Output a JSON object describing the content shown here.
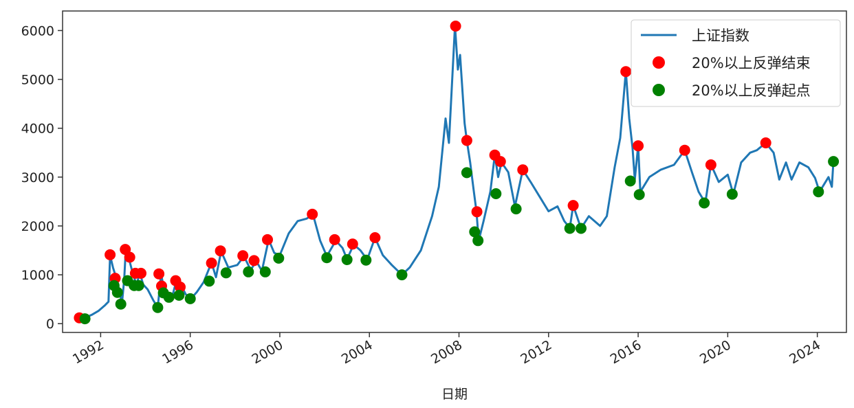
{
  "chart_data": {
    "type": "line",
    "title": "",
    "xlabel": "日期",
    "ylabel": "",
    "xlim": [
      1990.3,
      2025.3
    ],
    "ylim": [
      -180,
      6400
    ],
    "x_ticks": [
      1992,
      1996,
      2000,
      2004,
      2008,
      2012,
      2016,
      2020,
      2024
    ],
    "y_ticks": [
      0,
      1000,
      2000,
      3000,
      4000,
      5000,
      6000
    ],
    "grid": false,
    "legend_position": "top-right",
    "colors": {
      "line": "#1f77b4",
      "end": "#ff0000",
      "start": "#008000"
    },
    "series": [
      {
        "name": "上证指数",
        "kind": "line",
        "points": [
          [
            1990.95,
            100
          ],
          [
            1991.3,
            120
          ],
          [
            1991.6,
            180
          ],
          [
            1991.9,
            260
          ],
          [
            1992.2,
            380
          ],
          [
            1992.35,
            450
          ],
          [
            1992.42,
            1400
          ],
          [
            1992.55,
            1150
          ],
          [
            1992.7,
            930
          ],
          [
            1992.85,
            650
          ],
          [
            1992.95,
            400
          ],
          [
            1993.05,
            900
          ],
          [
            1993.12,
            1510
          ],
          [
            1993.28,
            1300
          ],
          [
            1993.45,
            1000
          ],
          [
            1993.6,
            800
          ],
          [
            1993.75,
            1030
          ],
          [
            1993.9,
            800
          ],
          [
            1994.1,
            700
          ],
          [
            1994.35,
            480
          ],
          [
            1994.55,
            330
          ],
          [
            1994.7,
            1020
          ],
          [
            1994.82,
            720
          ],
          [
            1995.0,
            600
          ],
          [
            1995.2,
            560
          ],
          [
            1995.38,
            880
          ],
          [
            1995.5,
            660
          ],
          [
            1995.62,
            760
          ],
          [
            1995.8,
            600
          ],
          [
            1996.05,
            520
          ],
          [
            1996.3,
            650
          ],
          [
            1996.6,
            850
          ],
          [
            1996.95,
            1250
          ],
          [
            1997.15,
            950
          ],
          [
            1997.38,
            1480
          ],
          [
            1997.7,
            1150
          ],
          [
            1998.1,
            1200
          ],
          [
            1998.4,
            1380
          ],
          [
            1998.7,
            1100
          ],
          [
            1998.95,
            1280
          ],
          [
            1999.2,
            1080
          ],
          [
            1999.5,
            1720
          ],
          [
            1999.75,
            1450
          ],
          [
            2000.0,
            1400
          ],
          [
            2000.4,
            1850
          ],
          [
            2000.8,
            2100
          ],
          [
            2001.2,
            2150
          ],
          [
            2001.48,
            2240
          ],
          [
            2001.8,
            1700
          ],
          [
            2002.1,
            1380
          ],
          [
            2002.5,
            1700
          ],
          [
            2002.8,
            1550
          ],
          [
            2003.0,
            1320
          ],
          [
            2003.3,
            1620
          ],
          [
            2003.6,
            1500
          ],
          [
            2003.9,
            1310
          ],
          [
            2004.25,
            1760
          ],
          [
            2004.6,
            1400
          ],
          [
            2005.0,
            1200
          ],
          [
            2005.45,
            1000
          ],
          [
            2005.8,
            1150
          ],
          [
            2006.3,
            1500
          ],
          [
            2006.8,
            2200
          ],
          [
            2007.1,
            2800
          ],
          [
            2007.4,
            4200
          ],
          [
            2007.55,
            3700
          ],
          [
            2007.82,
            6100
          ],
          [
            2007.95,
            5200
          ],
          [
            2008.05,
            5500
          ],
          [
            2008.25,
            4100
          ],
          [
            2008.35,
            3750
          ],
          [
            2008.5,
            3300
          ],
          [
            2008.65,
            2750
          ],
          [
            2008.78,
            2300
          ],
          [
            2008.88,
            1700
          ],
          [
            2009.1,
            2100
          ],
          [
            2009.4,
            2700
          ],
          [
            2009.6,
            3450
          ],
          [
            2009.75,
            3000
          ],
          [
            2009.9,
            3300
          ],
          [
            2010.2,
            3100
          ],
          [
            2010.5,
            2400
          ],
          [
            2010.85,
            3150
          ],
          [
            2011.2,
            2900
          ],
          [
            2011.6,
            2600
          ],
          [
            2012.0,
            2300
          ],
          [
            2012.4,
            2400
          ],
          [
            2012.7,
            2100
          ],
          [
            2012.95,
            1960
          ],
          [
            2013.1,
            2420
          ],
          [
            2013.45,
            1950
          ],
          [
            2013.8,
            2200
          ],
          [
            2014.3,
            2000
          ],
          [
            2014.6,
            2200
          ],
          [
            2014.95,
            3200
          ],
          [
            2015.2,
            3800
          ],
          [
            2015.45,
            5170
          ],
          [
            2015.6,
            4200
          ],
          [
            2015.75,
            3600
          ],
          [
            2015.85,
            2950
          ],
          [
            2016.0,
            3640
          ],
          [
            2016.1,
            2700
          ],
          [
            2016.5,
            3000
          ],
          [
            2017.0,
            3150
          ],
          [
            2017.6,
            3250
          ],
          [
            2018.08,
            3550
          ],
          [
            2018.4,
            3100
          ],
          [
            2018.7,
            2700
          ],
          [
            2019.0,
            2470
          ],
          [
            2019.25,
            3260
          ],
          [
            2019.6,
            2900
          ],
          [
            2020.0,
            3050
          ],
          [
            2020.25,
            2650
          ],
          [
            2020.6,
            3300
          ],
          [
            2021.0,
            3500
          ],
          [
            2021.3,
            3550
          ],
          [
            2021.7,
            3700
          ],
          [
            2022.05,
            3500
          ],
          [
            2022.3,
            2950
          ],
          [
            2022.6,
            3300
          ],
          [
            2022.85,
            2950
          ],
          [
            2023.2,
            3300
          ],
          [
            2023.6,
            3200
          ],
          [
            2023.9,
            2980
          ],
          [
            2024.1,
            2700
          ],
          [
            2024.5,
            3000
          ],
          [
            2024.65,
            2800
          ],
          [
            2024.72,
            3330
          ]
        ]
      },
      {
        "name": "20%以上反弹结束",
        "kind": "scatter",
        "points": [
          [
            1991.05,
            120
          ],
          [
            1992.42,
            1410
          ],
          [
            1992.65,
            930
          ],
          [
            1993.1,
            1520
          ],
          [
            1993.3,
            1360
          ],
          [
            1993.55,
            1030
          ],
          [
            1993.8,
            1030
          ],
          [
            1994.6,
            1020
          ],
          [
            1994.72,
            770
          ],
          [
            1995.35,
            880
          ],
          [
            1995.55,
            750
          ],
          [
            1996.95,
            1240
          ],
          [
            1997.35,
            1490
          ],
          [
            1998.35,
            1390
          ],
          [
            1998.85,
            1290
          ],
          [
            1999.45,
            1720
          ],
          [
            2001.45,
            2240
          ],
          [
            2002.45,
            1720
          ],
          [
            2003.25,
            1630
          ],
          [
            2004.25,
            1760
          ],
          [
            2007.85,
            6090
          ],
          [
            2008.35,
            3750
          ],
          [
            2008.8,
            2290
          ],
          [
            2009.6,
            3450
          ],
          [
            2009.85,
            3320
          ],
          [
            2010.85,
            3150
          ],
          [
            2013.1,
            2420
          ],
          [
            2015.45,
            5160
          ],
          [
            2016.0,
            3640
          ],
          [
            2018.08,
            3550
          ],
          [
            2019.25,
            3250
          ],
          [
            2021.7,
            3700
          ]
        ]
      },
      {
        "name": "20%以上反弹起点",
        "kind": "scatter",
        "points": [
          [
            1991.3,
            100
          ],
          [
            1992.6,
            780
          ],
          [
            1992.75,
            640
          ],
          [
            1992.9,
            400
          ],
          [
            1993.2,
            880
          ],
          [
            1993.5,
            780
          ],
          [
            1993.7,
            780
          ],
          [
            1994.55,
            330
          ],
          [
            1994.8,
            630
          ],
          [
            1995.05,
            540
          ],
          [
            1995.5,
            580
          ],
          [
            1996.0,
            510
          ],
          [
            1996.85,
            870
          ],
          [
            1997.6,
            1040
          ],
          [
            1998.6,
            1060
          ],
          [
            1999.35,
            1060
          ],
          [
            1999.95,
            1340
          ],
          [
            2002.1,
            1350
          ],
          [
            2003.0,
            1310
          ],
          [
            2003.85,
            1300
          ],
          [
            2005.45,
            1000
          ],
          [
            2008.35,
            3090
          ],
          [
            2008.7,
            1880
          ],
          [
            2008.85,
            1700
          ],
          [
            2009.65,
            2660
          ],
          [
            2010.55,
            2350
          ],
          [
            2012.95,
            1950
          ],
          [
            2013.45,
            1950
          ],
          [
            2015.65,
            2920
          ],
          [
            2016.05,
            2640
          ],
          [
            2018.95,
            2470
          ],
          [
            2020.2,
            2650
          ],
          [
            2024.05,
            2700
          ],
          [
            2024.72,
            3320
          ]
        ]
      }
    ]
  }
}
